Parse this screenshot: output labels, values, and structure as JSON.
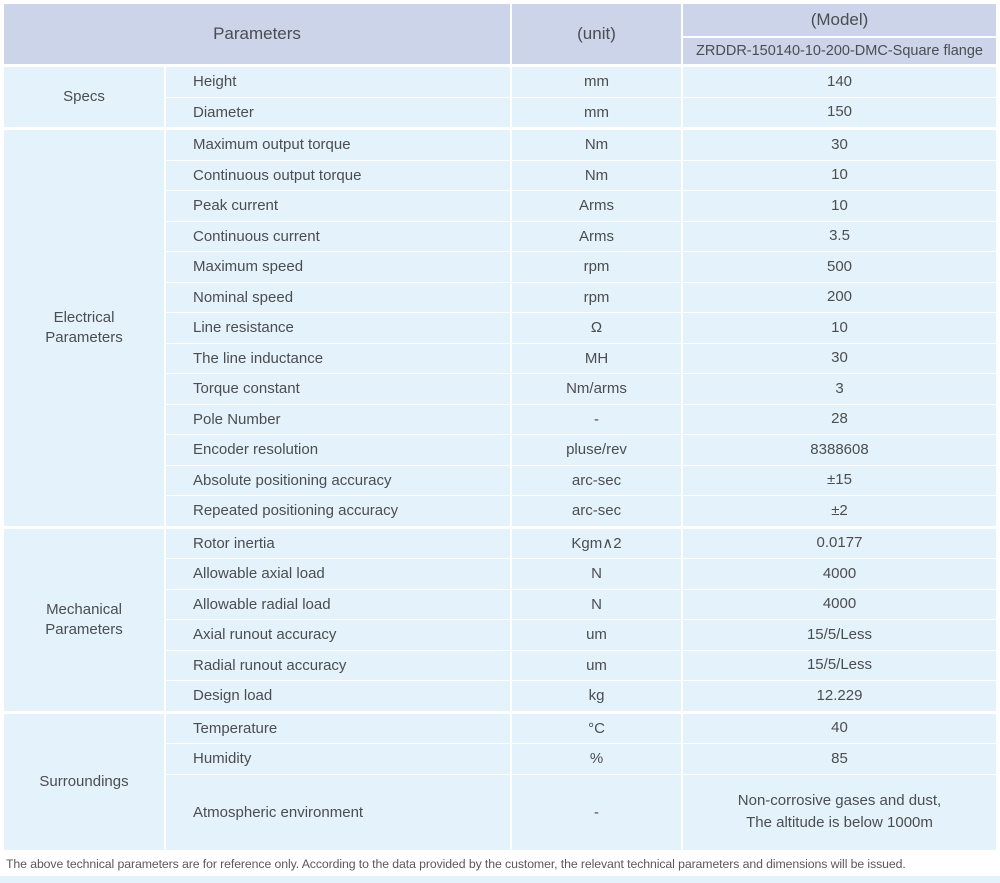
{
  "colors": {
    "header_bg": "#ccd4e9",
    "row_bg": "#e4f2fb",
    "text": "#4c4d50"
  },
  "table": {
    "header": {
      "parameters_label": "Parameters",
      "unit_label": "(unit)",
      "model_label": "(Model)",
      "model_value": "ZRDDR-150140-10-200-DMC-Square flange"
    },
    "sections": [
      {
        "category": "Specs",
        "rows": [
          {
            "parameter": "Height",
            "unit": "mm",
            "value": "140"
          },
          {
            "parameter": "Diameter",
            "unit": "mm",
            "value": "150"
          }
        ]
      },
      {
        "category": "Electrical\nParameters",
        "rows": [
          {
            "parameter": "Maximum output torque",
            "unit": "Nm",
            "value": "30"
          },
          {
            "parameter": "Continuous output torque",
            "unit": "Nm",
            "value": "10"
          },
          {
            "parameter": "Peak current",
            "unit": "Arms",
            "value": "10"
          },
          {
            "parameter": "Continuous current",
            "unit": "Arms",
            "value": "3.5"
          },
          {
            "parameter": "Maximum speed",
            "unit": "rpm",
            "value": "500"
          },
          {
            "parameter": "Nominal speed",
            "unit": "rpm",
            "value": "200"
          },
          {
            "parameter": "Line resistance",
            "unit": "Ω",
            "value": "10"
          },
          {
            "parameter": "The line inductance",
            "unit": "MH",
            "value": "30"
          },
          {
            "parameter": "Torque constant",
            "unit": "Nm/arms",
            "value": "3"
          },
          {
            "parameter": "Pole Number",
            "unit": "-",
            "value": "28"
          },
          {
            "parameter": "Encoder resolution",
            "unit": "pluse/rev",
            "value": "8388608"
          },
          {
            "parameter": "Absolute positioning accuracy",
            "unit": "arc-sec",
            "value": "±15"
          },
          {
            "parameter": "Repeated positioning accuracy",
            "unit": "arc-sec",
            "value": "±2"
          }
        ]
      },
      {
        "category": "Mechanical\nParameters",
        "rows": [
          {
            "parameter": "Rotor inertia",
            "unit": "Kgm∧2",
            "value": "0.0177"
          },
          {
            "parameter": "Allowable axial load",
            "unit": "N",
            "value": "4000"
          },
          {
            "parameter": "Allowable radial load",
            "unit": "N",
            "value": "4000"
          },
          {
            "parameter": "Axial runout accuracy",
            "unit": "um",
            "value": "15/5/Less"
          },
          {
            "parameter": "Radial runout accuracy",
            "unit": "um",
            "value": "15/5/Less"
          },
          {
            "parameter": "Design load",
            "unit": "kg",
            "value": "12.229"
          }
        ]
      },
      {
        "category": "Surroundings",
        "rows": [
          {
            "parameter": "Temperature",
            "unit": "°C",
            "value": "40"
          },
          {
            "parameter": "Humidity",
            "unit": "%",
            "value": "85"
          },
          {
            "parameter": "Atmospheric environment",
            "unit": "-",
            "value": "Non-corrosive gases and dust,\nThe altitude is below 1000m"
          }
        ]
      }
    ],
    "footnote": "The above technical parameters are for reference only. According to the data provided by the customer, the relevant technical parameters and dimensions will be issued."
  }
}
